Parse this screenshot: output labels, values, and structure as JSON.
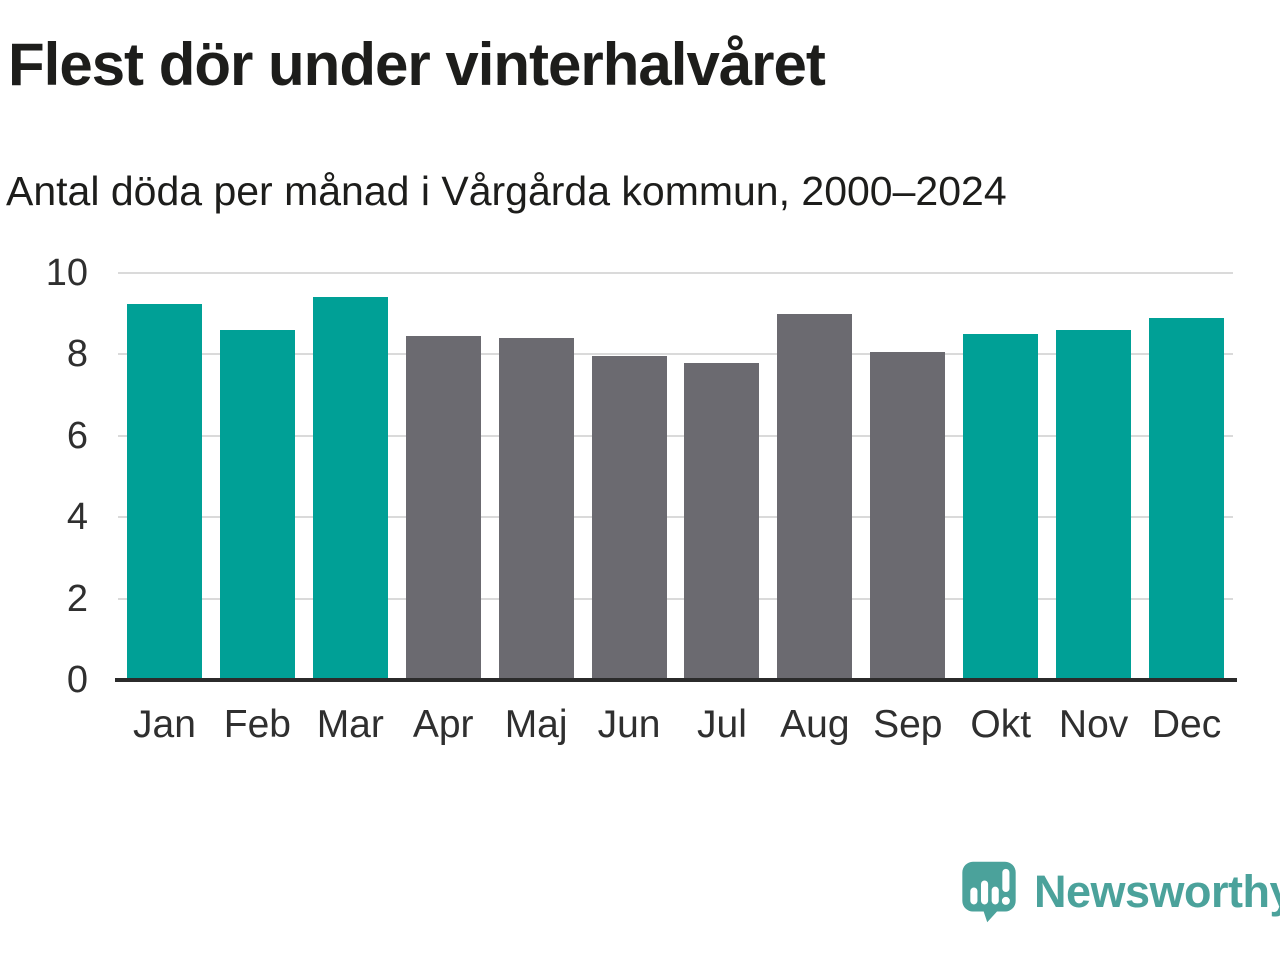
{
  "header": {
    "title": "Flest dör under vinterhalvåret",
    "subtitle": "Antal döda per månad i Vårgårda kommun, 2000–2024"
  },
  "chart_data": {
    "type": "bar",
    "title": "Flest dör under vinterhalvåret",
    "subtitle": "Antal döda per månad i Vårgårda kommun, 2000–2024",
    "categories": [
      "Jan",
      "Feb",
      "Mar",
      "Apr",
      "Maj",
      "Jun",
      "Jul",
      "Aug",
      "Sep",
      "Okt",
      "Nov",
      "Dec"
    ],
    "values": [
      9.25,
      8.6,
      9.4,
      8.45,
      8.4,
      7.95,
      7.8,
      9.0,
      8.05,
      8.5,
      8.6,
      8.9
    ],
    "bar_colors": [
      "teal",
      "teal",
      "teal",
      "gray",
      "gray",
      "gray",
      "gray",
      "gray",
      "gray",
      "teal",
      "teal",
      "teal"
    ],
    "xlabel": "",
    "ylabel": "",
    "ylim": [
      0,
      10
    ],
    "yticks": [
      0,
      2,
      4,
      6,
      8,
      10
    ],
    "grid": true,
    "legend": false
  },
  "colors": {
    "teal": "#00a096",
    "gray": "#6b6a70",
    "gridline": "#dadada",
    "axis": "#2b2b2b",
    "title_text": "#1d1d1b",
    "tick_text": "#2f2f2f",
    "brand": "#4ba29b"
  },
  "footer": {
    "brand_name": "Newsworthy",
    "logo_icon": "newsworthy-speech-bubble-bar-chart-icon"
  }
}
